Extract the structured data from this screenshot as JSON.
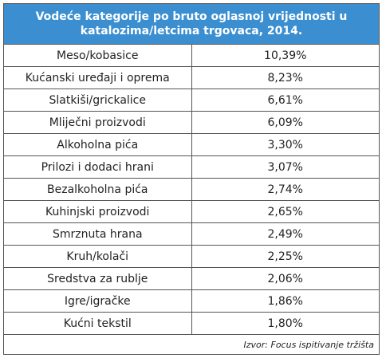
{
  "header": {
    "title": "Vodeće kategorije po bruto oglasnoj vrijednosti u katalozima/letcima trgovaca, 2014."
  },
  "table": {
    "rows": [
      [
        "Meso/kobasice",
        "10,39%"
      ],
      [
        "Kućanski uređaji i oprema",
        "8,23%"
      ],
      [
        "Slatkiši/grickalice",
        "6,61%"
      ],
      [
        "Mliječni proizvodi",
        "6,09%"
      ],
      [
        "Alkoholna pića",
        "3,30%"
      ],
      [
        "Prilozi i dodaci hrani",
        "3,07%"
      ],
      [
        "Bezalkoholna pića",
        "2,74%"
      ],
      [
        "Kuhinjski proizvodi",
        "2,65%"
      ],
      [
        "Smrznuta hrana",
        "2,49%"
      ],
      [
        "Kruh/kolači",
        "2,25%"
      ],
      [
        "Sredstva za rublje",
        "2,06%"
      ],
      [
        "Igre/igračke",
        "1,86%"
      ],
      [
        "Kućni tekstil",
        "1,80%"
      ]
    ]
  },
  "source": "Izvor: Focus ispitivanje tržišta"
}
